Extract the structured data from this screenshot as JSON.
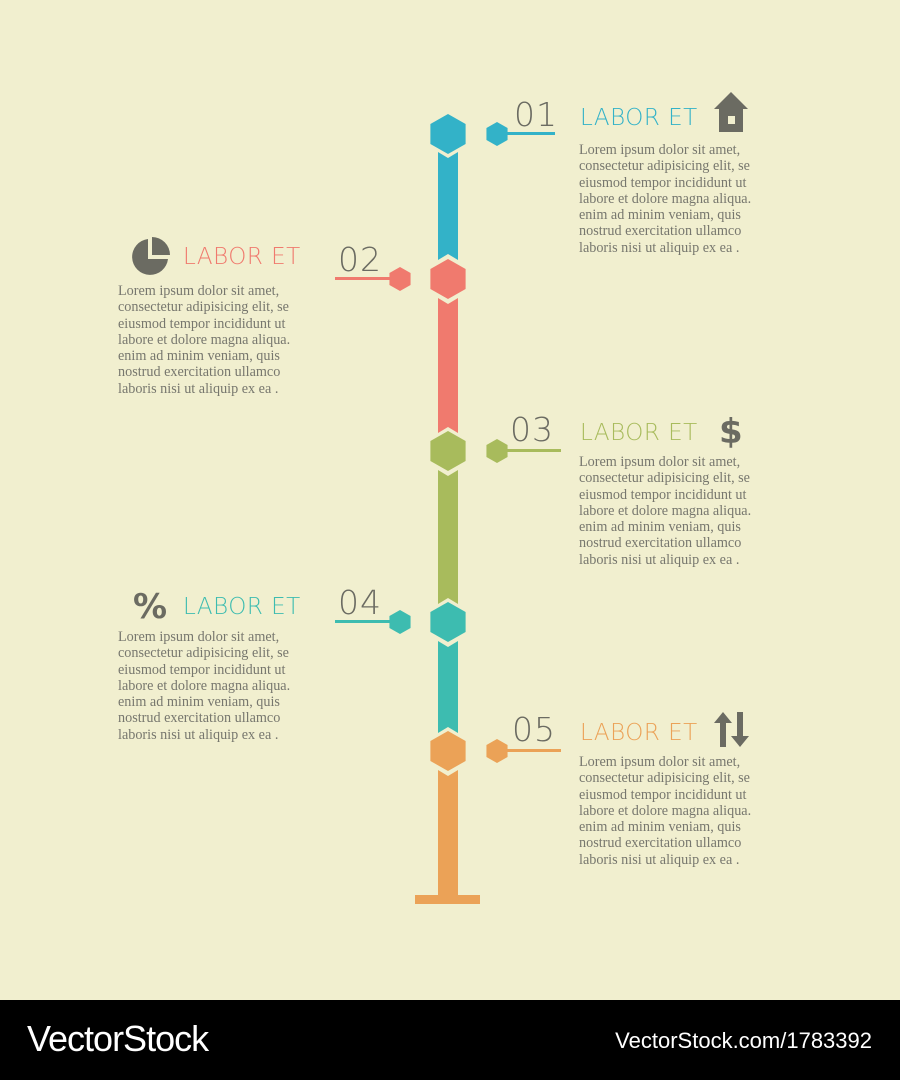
{
  "colors": {
    "background": "#f1efcf",
    "step1": "#33b2c8",
    "step2": "#f07a6e",
    "step3": "#a8bb5c",
    "step4": "#3dbcb0",
    "step5": "#eba257",
    "text": "#77776e",
    "icon": "#6b6b62"
  },
  "steps": [
    {
      "number": "01",
      "title": "LABOR ET",
      "icon": "house-icon",
      "side": "right",
      "body": "Lorem ipsum dolor sit amet,\nconsectetur adipisicing elit, se\neiusmod tempor incididunt ut\nlabore et dolore magna aliqua.\nenim ad minim veniam, quis\nnostrud exercitation ullamco\nlaboris nisi ut aliquip ex ea ."
    },
    {
      "number": "02",
      "title": "LABOR ET",
      "icon": "pie-chart-icon",
      "side": "left",
      "body": "Lorem ipsum dolor sit amet,\nconsectetur adipisicing elit, se\neiusmod tempor incididunt ut\nlabore et dolore magna aliqua.\nenim ad minim veniam, quis\nnostrud exercitation ullamco\nlaboris nisi ut aliquip ex ea ."
    },
    {
      "number": "03",
      "title": "LABOR ET",
      "icon": "dollar-icon",
      "side": "right",
      "body": "Lorem ipsum dolor sit amet,\nconsectetur adipisicing elit, se\neiusmod tempor incididunt ut\nlabore et dolore magna aliqua.\nenim ad minim veniam, quis\nnostrud exercitation ullamco\nlaboris nisi ut aliquip ex ea ."
    },
    {
      "number": "04",
      "title": "LABOR ET",
      "icon": "percent-icon",
      "side": "left",
      "body": "Lorem ipsum dolor sit amet,\nconsectetur adipisicing elit, se\neiusmod tempor incididunt ut\nlabore et dolore magna aliqua.\nenim ad minim veniam, quis\nnostrud exercitation ullamco\nlaboris nisi ut aliquip ex ea ."
    },
    {
      "number": "05",
      "title": "LABOR ET",
      "icon": "up-down-arrows-icon",
      "side": "right",
      "body": "Lorem ipsum dolor sit amet,\nconsectetur adipisicing elit, se\neiusmod tempor incididunt ut\nlabore et dolore magna aliqua.\nenim ad minim veniam, quis\nnostrud exercitation ullamco\nlaboris nisi ut aliquip ex ea ."
    }
  ],
  "icon_glyphs": {
    "dollar": "$",
    "percent": "%"
  },
  "watermark": {
    "brand": "VectorStock",
    "url": "VectorStock.com/1783392"
  }
}
